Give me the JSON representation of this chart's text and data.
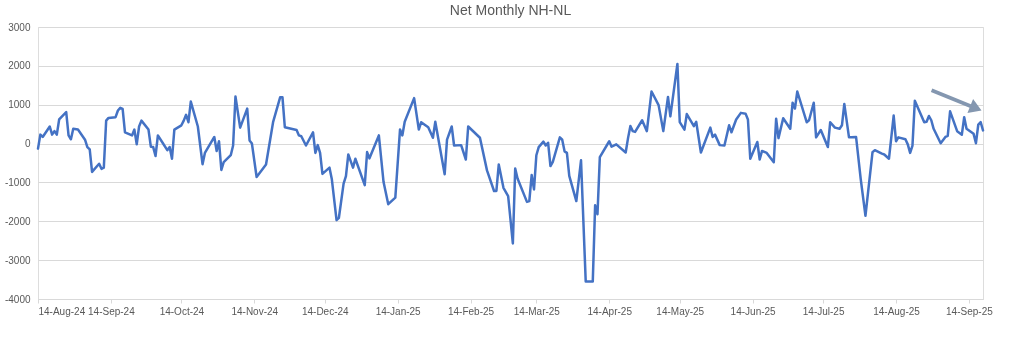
{
  "chart_data": {
    "type": "line",
    "title": "Net Monthly NH-NL",
    "x": [
      "2024-08-14",
      "2024-08-15",
      "2024-08-16",
      "2024-08-19",
      "2024-08-20",
      "2024-08-21",
      "2024-08-22",
      "2024-08-23",
      "2024-08-26",
      "2024-08-27",
      "2024-08-28",
      "2024-08-29",
      "2024-08-31",
      "2024-09-03",
      "2024-09-04",
      "2024-09-05",
      "2024-09-06",
      "2024-09-09",
      "2024-09-10",
      "2024-09-11",
      "2024-09-12",
      "2024-09-13",
      "2024-09-16",
      "2024-09-17",
      "2024-09-18",
      "2024-09-19",
      "2024-09-20",
      "2024-09-23",
      "2024-09-24",
      "2024-09-25",
      "2024-09-26",
      "2024-09-27",
      "2024-09-30",
      "2024-10-01",
      "2024-10-02",
      "2024-10-03",
      "2024-10-04",
      "2024-10-06",
      "2024-10-08",
      "2024-10-09",
      "2024-10-10",
      "2024-10-11",
      "2024-10-14",
      "2024-10-15",
      "2024-10-16",
      "2024-10-17",
      "2024-10-18",
      "2024-10-21",
      "2024-10-23",
      "2024-10-24",
      "2024-10-28",
      "2024-10-29",
      "2024-10-30",
      "2024-10-31",
      "2024-11-01",
      "2024-11-04",
      "2024-11-05",
      "2024-11-06",
      "2024-11-08",
      "2024-11-11",
      "2024-11-12",
      "2024-11-13",
      "2024-11-15",
      "2024-11-19",
      "2024-11-22",
      "2024-11-25",
      "2024-11-26",
      "2024-11-27",
      "2024-12-02",
      "2024-12-03",
      "2024-12-04",
      "2024-12-06",
      "2024-12-09",
      "2024-12-10",
      "2024-12-11",
      "2024-12-12",
      "2024-12-13",
      "2024-12-16",
      "2024-12-17",
      "2024-12-19",
      "2024-12-20",
      "2024-12-22",
      "2024-12-23",
      "2024-12-24",
      "2024-12-26",
      "2024-12-27",
      "2024-12-31",
      "2025-01-01",
      "2025-01-02",
      "2025-01-06",
      "2025-01-08",
      "2025-01-10",
      "2025-01-13",
      "2025-01-15",
      "2025-01-16",
      "2025-01-17",
      "2025-01-21",
      "2025-01-23",
      "2025-01-24",
      "2025-01-27",
      "2025-01-29",
      "2025-01-30",
      "2025-02-03",
      "2025-02-04",
      "2025-02-06",
      "2025-02-07",
      "2025-02-10",
      "2025-02-12",
      "2025-02-13",
      "2025-02-18",
      "2025-02-21",
      "2025-02-24",
      "2025-02-25",
      "2025-02-26",
      "2025-02-28",
      "2025-03-02",
      "2025-03-04",
      "2025-03-05",
      "2025-03-06",
      "2025-03-10",
      "2025-03-11",
      "2025-03-12",
      "2025-03-13",
      "2025-03-14",
      "2025-03-15",
      "2025-03-17",
      "2025-03-18",
      "2025-03-19",
      "2025-03-20",
      "2025-03-21",
      "2025-03-24",
      "2025-03-25",
      "2025-03-26",
      "2025-03-27",
      "2025-03-28",
      "2025-03-31",
      "2025-04-02",
      "2025-04-04",
      "2025-04-07",
      "2025-04-08",
      "2025-04-09",
      "2025-04-10",
      "2025-04-14",
      "2025-04-15",
      "2025-04-17",
      "2025-04-21",
      "2025-04-22",
      "2025-04-23",
      "2025-04-24",
      "2025-04-25",
      "2025-04-28",
      "2025-04-30",
      "2025-05-02",
      "2025-05-05",
      "2025-05-07",
      "2025-05-09",
      "2025-05-10",
      "2025-05-13",
      "2025-05-14",
      "2025-05-16",
      "2025-05-17",
      "2025-05-20",
      "2025-05-21",
      "2025-05-23",
      "2025-05-27",
      "2025-05-28",
      "2025-05-29",
      "2025-05-31",
      "2025-06-02",
      "2025-06-04",
      "2025-06-05",
      "2025-06-07",
      "2025-06-09",
      "2025-06-11",
      "2025-06-12",
      "2025-06-13",
      "2025-06-16",
      "2025-06-17",
      "2025-06-18",
      "2025-06-20",
      "2025-06-23",
      "2025-06-24",
      "2025-06-25",
      "2025-06-27",
      "2025-06-30",
      "2025-07-01",
      "2025-07-02",
      "2025-07-03",
      "2025-07-07",
      "2025-07-08",
      "2025-07-10",
      "2025-07-11",
      "2025-07-13",
      "2025-07-16",
      "2025-07-17",
      "2025-07-19",
      "2025-07-21",
      "2025-07-22",
      "2025-07-23",
      "2025-07-25",
      "2025-07-26",
      "2025-07-28",
      "2025-07-30",
      "2025-08-01",
      "2025-08-04",
      "2025-08-05",
      "2025-08-08",
      "2025-08-09",
      "2025-08-11",
      "2025-08-13",
      "2025-08-14",
      "2025-08-15",
      "2025-08-18",
      "2025-08-19",
      "2025-08-20",
      "2025-08-21",
      "2025-08-22",
      "2025-08-26",
      "2025-08-27",
      "2025-08-28",
      "2025-08-29",
      "2025-08-30",
      "2025-09-02",
      "2025-09-04",
      "2025-09-05",
      "2025-09-06",
      "2025-09-09",
      "2025-09-11",
      "2025-09-12",
      "2025-09-13",
      "2025-09-16",
      "2025-09-17",
      "2025-09-18",
      "2025-09-19",
      "2025-09-20"
    ],
    "series": [
      {
        "color": "#4472c4",
        "values": [
          -130,
          230,
          170,
          440,
          230,
          320,
          230,
          620,
          810,
          210,
          110,
          380,
          360,
          100,
          -90,
          -150,
          -730,
          -520,
          -650,
          -620,
          590,
          660,
          680,
          850,
          920,
          890,
          290,
          210,
          360,
          -20,
          440,
          590,
          360,
          -80,
          -90,
          -320,
          210,
          20,
          -170,
          -90,
          -390,
          360,
          470,
          590,
          740,
          550,
          1080,
          440,
          -530,
          -240,
          170,
          -190,
          60,
          -680,
          -480,
          -300,
          -50,
          1210,
          410,
          900,
          80,
          0,
          -860,
          -540,
          550,
          1190,
          1190,
          420,
          350,
          210,
          190,
          -50,
          290,
          -240,
          -40,
          -240,
          -780,
          -620,
          -920,
          -1970,
          -1910,
          -1030,
          -840,
          -280,
          -620,
          -390,
          -1070,
          -220,
          -380,
          210,
          -990,
          -1560,
          -1390,
          360,
          210,
          560,
          1170,
          360,
          550,
          420,
          150,
          560,
          -790,
          100,
          440,
          -50,
          -40,
          -410,
          440,
          150,
          -690,
          -1220,
          -1220,
          -540,
          -1140,
          -1350,
          -2570,
          -640,
          -900,
          -1500,
          -1480,
          -810,
          -1180,
          -300,
          -90,
          50,
          -50,
          20,
          -580,
          -470,
          160,
          100,
          -200,
          -240,
          -830,
          -1480,
          -430,
          -3550,
          -3550,
          -1590,
          -1820,
          -350,
          60,
          -80,
          -20,
          -230,
          140,
          450,
          320,
          300,
          600,
          320,
          1340,
          990,
          320,
          1200,
          700,
          2050,
          550,
          360,
          760,
          450,
          560,
          -230,
          410,
          170,
          230,
          -40,
          -50,
          470,
          290,
          620,
          790,
          770,
          620,
          -390,
          40,
          -410,
          -190,
          -240,
          -480,
          640,
          140,
          650,
          380,
          1050,
          900,
          1340,
          550,
          600,
          1050,
          160,
          350,
          -90,
          550,
          410,
          380,
          470,
          1020,
          160,
          160,
          170,
          -920,
          -1860,
          -220,
          -170,
          -260,
          -280,
          -390,
          720,
          60,
          160,
          110,
          -20,
          -240,
          -50,
          1100,
          550,
          560,
          710,
          600,
          380,
          10,
          170,
          200,
          830,
          320,
          230,
          680,
          380,
          250,
          10,
          490,
          550,
          340
        ]
      }
    ],
    "xlim": [
      "2024-08-14",
      "2025-09-20"
    ],
    "xticks": [
      {
        "value": "2024-08-14",
        "label": "14-Aug-24"
      },
      {
        "value": "2024-09-14",
        "label": "14-Sep-24"
      },
      {
        "value": "2024-10-14",
        "label": "14-Oct-24"
      },
      {
        "value": "2024-11-14",
        "label": "14-Nov-24"
      },
      {
        "value": "2024-12-14",
        "label": "14-Dec-24"
      },
      {
        "value": "2025-01-14",
        "label": "14-Jan-25"
      },
      {
        "value": "2025-02-14",
        "label": "14-Feb-25"
      },
      {
        "value": "2025-03-14",
        "label": "14-Mar-25"
      },
      {
        "value": "2025-04-14",
        "label": "14-Apr-25"
      },
      {
        "value": "2025-05-14",
        "label": "14-May-25"
      },
      {
        "value": "2025-06-14",
        "label": "14-Jun-25"
      },
      {
        "value": "2025-07-14",
        "label": "14-Jul-25"
      },
      {
        "value": "2025-08-14",
        "label": "14-Aug-25"
      },
      {
        "value": "2025-09-14",
        "label": "14-Sep-25"
      }
    ],
    "ylim": [
      -4000,
      3000
    ],
    "yticks": [
      -4000,
      -3000,
      -2000,
      -1000,
      0,
      1000,
      2000,
      3000
    ],
    "grid": "y",
    "marker": "none",
    "line_style": "solid"
  }
}
